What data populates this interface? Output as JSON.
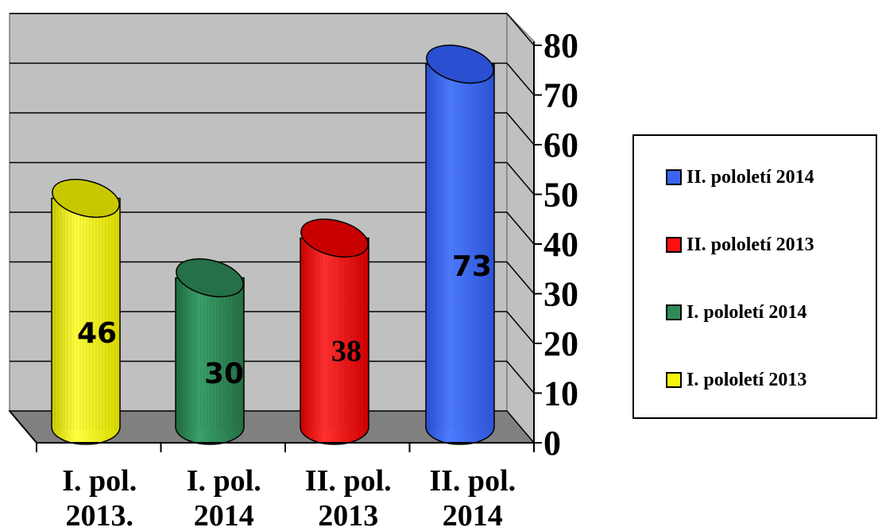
{
  "chart_data": {
    "type": "bar",
    "categories": [
      "I. pol. 2013.",
      "I. pol. 2014",
      "II. pol. 2013",
      "II. pol. 2014"
    ],
    "category_lines": [
      [
        "I. pol.",
        "2013."
      ],
      [
        "I. pol.",
        "2014"
      ],
      [
        "II. pol.",
        "2013"
      ],
      [
        "II. pol.",
        "2014"
      ]
    ],
    "values": [
      46,
      30,
      38,
      73
    ],
    "value_labels": [
      "46",
      "30",
      "38",
      "73"
    ],
    "bar_colors": [
      "#f5f510",
      "#2e8b57",
      "#ff1010",
      "#3b64f0"
    ],
    "ylim": [
      0,
      80
    ],
    "y_ticks": [
      "0",
      "10",
      "20",
      "30",
      "40",
      "50",
      "60",
      "70",
      "80"
    ],
    "y_axis_side": "right",
    "grid": true,
    "style": "3d-cylinder",
    "legend_position": "right",
    "legend": [
      {
        "label": "II. pololetí 2014",
        "color": "#3b64f0"
      },
      {
        "label": "II. pololetí 2013",
        "color": "#ff1010"
      },
      {
        "label": "I. pololetí 2014",
        "color": "#2e8b57"
      },
      {
        "label": "I. pololetí 2013",
        "color": "#f5f510"
      }
    ]
  }
}
